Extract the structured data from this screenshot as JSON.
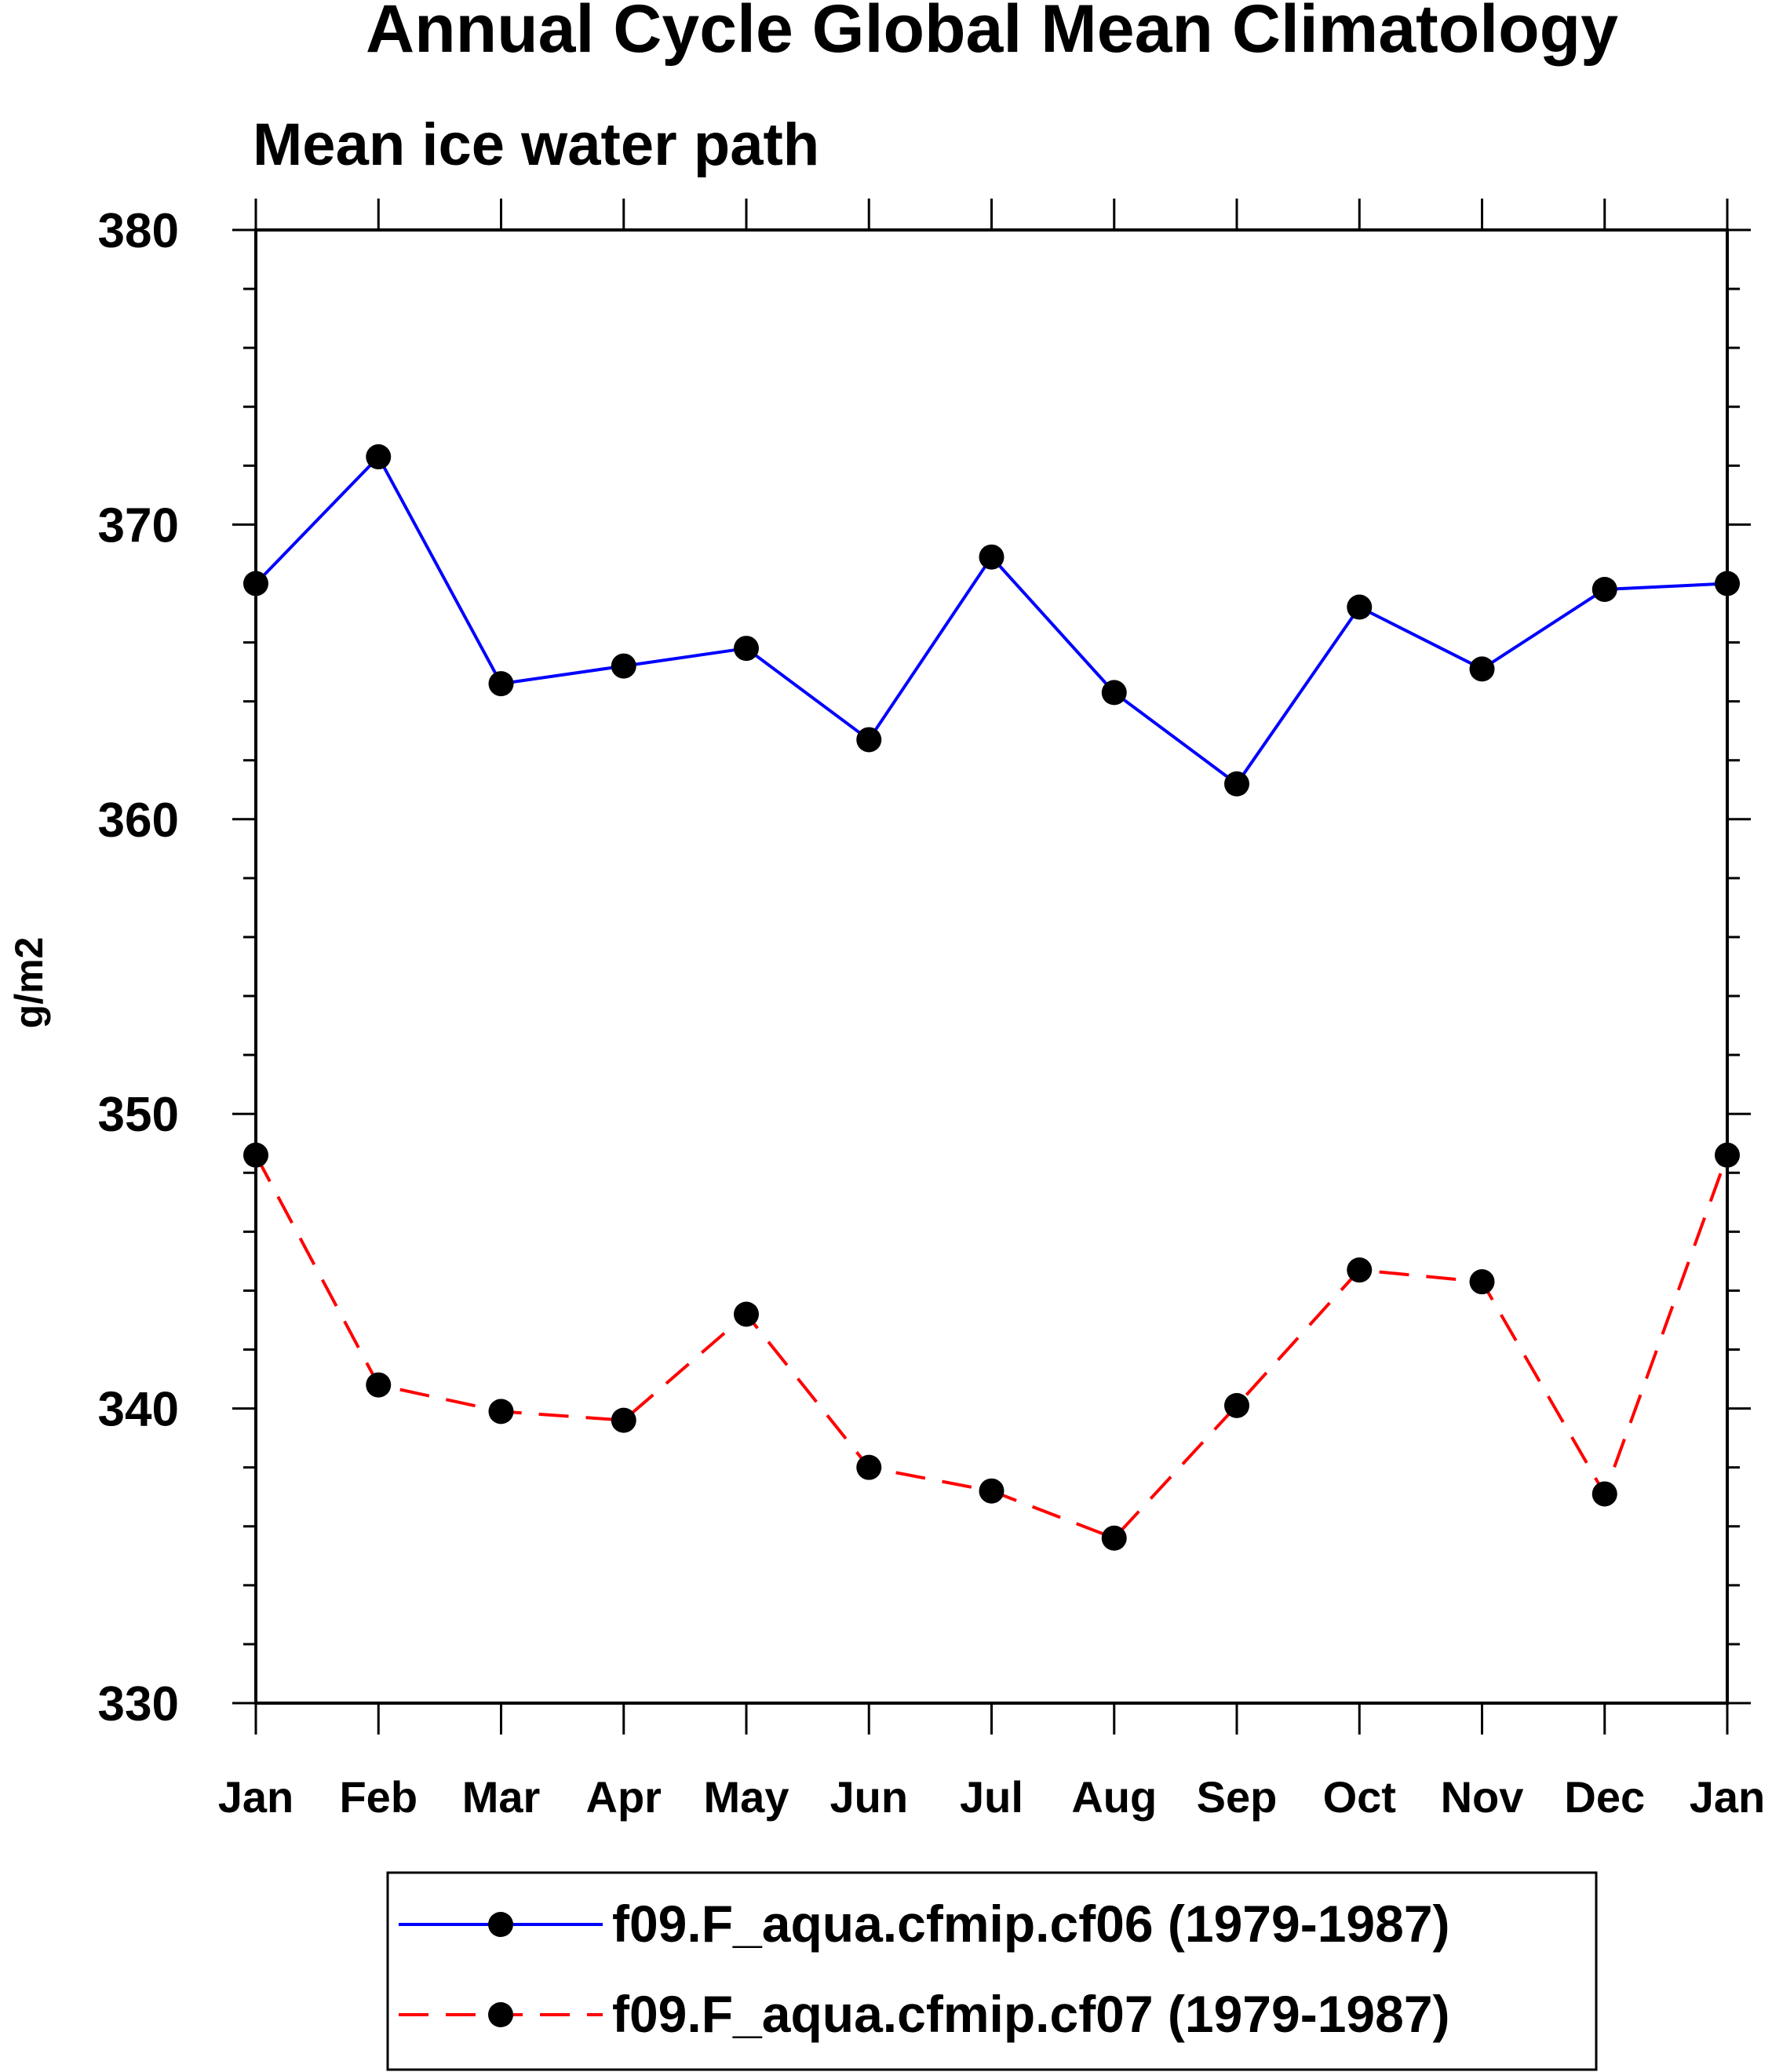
{
  "chart_data": {
    "type": "line",
    "title": "Annual Cycle Global Mean Climatology",
    "subtitle": "Mean ice water path",
    "xlabel": "",
    "ylabel": "g/m2",
    "categories": [
      "Jan",
      "Feb",
      "Mar",
      "Apr",
      "May",
      "Jun",
      "Jul",
      "Aug",
      "Sep",
      "Oct",
      "Nov",
      "Dec",
      "Jan"
    ],
    "ylim": [
      330,
      380
    ],
    "yticks": [
      330,
      340,
      350,
      360,
      370,
      380
    ],
    "ytick_labels": [
      "330",
      "340",
      "350",
      "360",
      "370",
      "380"
    ],
    "grid": false,
    "legend_position": "bottom",
    "series": [
      {
        "name": "f09.F_aqua.cfmip.cf06 (1979-1987)",
        "color": "#0000ff",
        "dash": "solid",
        "marker": "filled-circle",
        "values": [
          368.0,
          372.3,
          364.6,
          365.2,
          365.8,
          362.7,
          368.9,
          364.3,
          361.2,
          367.2,
          365.1,
          367.8,
          368.0
        ]
      },
      {
        "name": "f09.F_aqua.cfmip.cf07 (1979-1987)",
        "color": "#ff0000",
        "dash": "dashed",
        "marker": "filled-circle",
        "values": [
          348.6,
          340.8,
          339.9,
          339.6,
          343.2,
          338.0,
          337.2,
          335.6,
          340.1,
          344.7,
          344.3,
          337.1,
          348.6
        ]
      }
    ]
  }
}
